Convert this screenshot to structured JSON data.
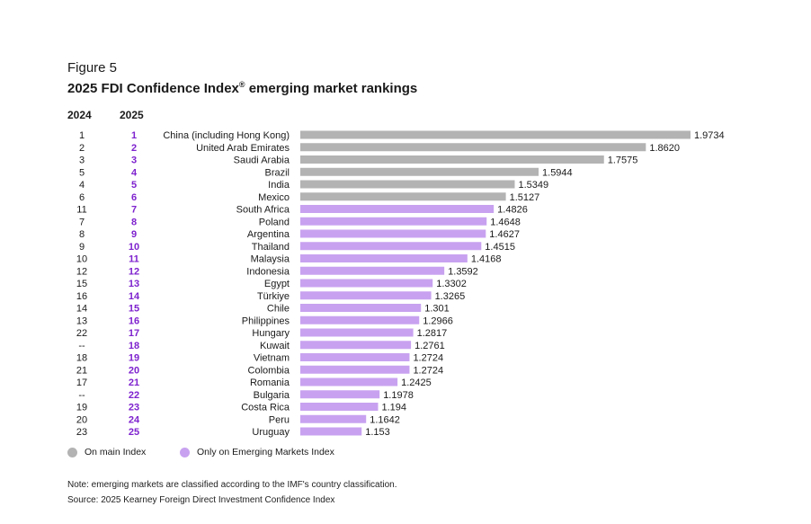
{
  "figure_label": "Figure 5",
  "title": "2025 FDI Confidence Index",
  "title_mark": "®",
  "title_suffix": " emerging market rankings",
  "columns": {
    "prev_year": "2024",
    "curr_year": "2025"
  },
  "colors": {
    "main_index": "#b3b3b3",
    "emerging_only": "#c8a2f0",
    "rank_2025": "#7e22ce"
  },
  "legend": [
    {
      "label": "On main Index",
      "color": "#b3b3b3"
    },
    {
      "label": "Only on Emerging Markets Index",
      "color": "#c8a2f0"
    }
  ],
  "notes": {
    "note": "Note: emerging markets are classified according to the IMF's country classification.",
    "source": "Source: 2025 Kearney Foreign Direct Investment Confidence Index"
  },
  "chart_data": {
    "type": "bar",
    "orientation": "horizontal",
    "xlim": [
      1,
      2
    ],
    "categories": [
      "China (including Hong Kong)",
      "United Arab Emirates",
      "Saudi Arabia",
      "Brazil",
      "India",
      "Mexico",
      "South Africa",
      "Poland",
      "Argentina",
      "Thailand",
      "Malaysia",
      "Indonesia",
      "Egypt",
      "Türkiye",
      "Chile",
      "Philippines",
      "Hungary",
      "Kuwait",
      "Vietnam",
      "Colombia",
      "Romania",
      "Bulgaria",
      "Costa Rica",
      "Peru",
      "Uruguay"
    ],
    "values": [
      1.9734,
      1.862,
      1.7575,
      1.5944,
      1.5349,
      1.5127,
      1.4826,
      1.4648,
      1.4627,
      1.4515,
      1.4168,
      1.3592,
      1.3302,
      1.3265,
      1.301,
      1.2966,
      1.2817,
      1.2761,
      1.2724,
      1.2724,
      1.2425,
      1.1978,
      1.194,
      1.1642,
      1.153
    ],
    "value_labels": [
      "1.9734",
      "1.8620",
      "1.7575",
      "1.5944",
      "1.5349",
      "1.5127",
      "1.4826",
      "1.4648",
      "1.4627",
      "1.4515",
      "1.4168",
      "1.3592",
      "1.3302",
      "1.3265",
      "1.301",
      "1.2966",
      "1.2817",
      "1.2761",
      "1.2724",
      "1.2724",
      "1.2425",
      "1.1978",
      "1.194",
      "1.1642",
      "1.153"
    ],
    "rank_2024": [
      "1",
      "2",
      "3",
      "5",
      "4",
      "6",
      "11",
      "7",
      "8",
      "9",
      "10",
      "12",
      "15",
      "16",
      "14",
      "13",
      "22",
      "--",
      "18",
      "21",
      "17",
      "--",
      "19",
      "20",
      "23"
    ],
    "rank_2025": [
      "1",
      "2",
      "3",
      "4",
      "5",
      "6",
      "7",
      "8",
      "9",
      "10",
      "11",
      "12",
      "13",
      "14",
      "15",
      "16",
      "17",
      "18",
      "19",
      "20",
      "21",
      "22",
      "23",
      "24",
      "25"
    ],
    "group": [
      "main",
      "main",
      "main",
      "main",
      "main",
      "main",
      "emerging",
      "emerging",
      "emerging",
      "emerging",
      "emerging",
      "emerging",
      "emerging",
      "emerging",
      "emerging",
      "emerging",
      "emerging",
      "emerging",
      "emerging",
      "emerging",
      "emerging",
      "emerging",
      "emerging",
      "emerging",
      "emerging"
    ]
  }
}
